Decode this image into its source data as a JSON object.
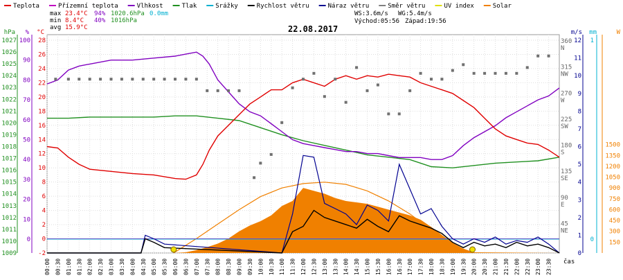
{
  "chart_data": {
    "type": "line",
    "title": "22.08.2017",
    "xlabel": "čas",
    "legend": [
      {
        "name": "Teplota",
        "color": "#e00000"
      },
      {
        "name": "Přízemní teplota",
        "color": "#c000c0"
      },
      {
        "name": "Vlhkost",
        "color": "#8000c0"
      },
      {
        "name": "Tlak",
        "color": "#209020"
      },
      {
        "name": "Srážky",
        "color": "#00b0d0"
      },
      {
        "name": "Rychlost větru",
        "color": "#000000"
      },
      {
        "name": "Náraz větru",
        "color": "#000090"
      },
      {
        "name": "Směr větru",
        "color": "#808080"
      },
      {
        "name": "UV index",
        "color": "#e0e000"
      },
      {
        "name": "Solar",
        "color": "#f08000"
      }
    ],
    "stats": {
      "max_label": "max",
      "max_temp": "23.4°C",
      "max_hum": "94%",
      "max_press": "1020.6hPa",
      "max_rain": "0.0mm",
      "min_label": "min",
      "min_temp": "8.4°C",
      "min_hum": "40%",
      "min_press": "1016hPa",
      "avg_label": "avg",
      "avg_temp": "15.9°C"
    },
    "wind_info": {
      "ws": "WS:3.6m/s",
      "wg": "WG:5.4m/s",
      "sunrise": "Východ:05:56",
      "sunset": "Západ:19:56"
    },
    "axes": {
      "hpa": {
        "unit": "hPa",
        "ticks": [
          1027,
          1026,
          1025,
          1024,
          1023,
          1022,
          1021,
          1020,
          1019,
          1018,
          1017,
          1016,
          1015,
          1014,
          1013,
          1012,
          1011,
          1010,
          1009
        ],
        "range": [
          1009,
          1027
        ]
      },
      "hum": {
        "unit": "%",
        "ticks": [
          100,
          90,
          80,
          70,
          60,
          50,
          40,
          30,
          20,
          10,
          0
        ],
        "range": [
          0,
          100
        ]
      },
      "temp": {
        "unit": "°C",
        "ticks": [
          28,
          26,
          24,
          22,
          20,
          18,
          16,
          14,
          12,
          10,
          8,
          6,
          4,
          2,
          0,
          -2
        ],
        "range": [
          -2,
          28
        ]
      },
      "dir": {
        "ticks": [
          {
            "v": "360",
            "l": "N"
          },
          {
            "v": "315",
            "l": "NW"
          },
          {
            "v": "270",
            "l": "W"
          },
          {
            "v": "225",
            "l": "SW"
          },
          {
            "v": "180",
            "l": "S"
          },
          {
            "v": "135",
            "l": "SE"
          },
          {
            "v": "90",
            "l": "E"
          },
          {
            "v": "45",
            "l": "NE"
          }
        ],
        "range": [
          0,
          360
        ]
      },
      "ms": {
        "unit": "m/s",
        "ticks": [
          12,
          11,
          10,
          9,
          8,
          7,
          6,
          5,
          4,
          3,
          2,
          1,
          0
        ],
        "range": [
          0,
          12
        ]
      },
      "mm": {
        "unit": "mm",
        "ticks": [
          1,
          0
        ],
        "range": [
          0,
          1
        ]
      },
      "w": {
        "unit": "W",
        "ticks": [
          1500,
          1350,
          1200,
          1050,
          900,
          750,
          600,
          450,
          300,
          150
        ],
        "range": [
          0,
          1650
        ]
      },
      "x_ticks": [
        "00:00",
        "00:30",
        "01:00",
        "01:30",
        "02:00",
        "02:30",
        "03:00",
        "03:30",
        "04:00",
        "04:30",
        "05:00",
        "05:30",
        "06:00",
        "06:30",
        "07:00",
        "07:30",
        "08:00",
        "08:30",
        "09:00",
        "09:30",
        "10:00",
        "10:30",
        "11:00",
        "11:30",
        "12:00",
        "12:30",
        "13:00",
        "13:30",
        "14:00",
        "14:30",
        "15:00",
        "15:30",
        "16:00",
        "16:30",
        "17:00",
        "17:30",
        "18:00",
        "18:30",
        "19:00",
        "19:30",
        "20:00",
        "20:30",
        "21:00",
        "21:30",
        "22:00",
        "22:30",
        "23:00",
        "23:30"
      ]
    },
    "series": {
      "temperature": {
        "unit": "°C",
        "x": [
          0,
          0.5,
          1,
          1.5,
          2,
          3,
          4,
          5,
          6,
          6.5,
          7,
          7.3,
          7.6,
          8,
          8.5,
          9,
          9.5,
          10,
          10.5,
          11,
          11.5,
          12,
          12.5,
          13,
          13.5,
          14,
          14.5,
          15,
          15.5,
          16,
          16.5,
          17,
          17.5,
          18,
          18.5,
          19,
          19.5,
          20,
          20.5,
          21,
          21.5,
          22,
          22.5,
          23,
          23.5,
          24
        ],
        "y": [
          13,
          12.8,
          11.5,
          10.5,
          9.8,
          9.5,
          9.2,
          9,
          8.5,
          8.4,
          9,
          10.5,
          12.5,
          14.5,
          16,
          17.5,
          19,
          20,
          21,
          21,
          22,
          22.5,
          22,
          21.5,
          22.5,
          23,
          22.5,
          23,
          22.8,
          23.2,
          23,
          22.8,
          22,
          21.5,
          21,
          20.5,
          19.5,
          18.5,
          17,
          15.5,
          14.5,
          14,
          13.5,
          13.3,
          12.5,
          11.5
        ]
      },
      "humidity": {
        "unit": "%",
        "x": [
          0,
          0.5,
          1,
          1.5,
          2,
          3,
          4,
          5,
          6,
          6.5,
          7,
          7.3,
          7.6,
          8,
          8.5,
          9,
          9.5,
          10,
          10.5,
          11,
          11.5,
          12,
          12.5,
          13,
          13.5,
          14,
          14.5,
          15,
          15.5,
          16,
          16.5,
          17,
          17.5,
          18,
          18.5,
          19,
          19.5,
          20,
          20.5,
          21,
          21.5,
          22,
          22.5,
          23,
          23.5,
          24
        ],
        "y": [
          78,
          80,
          85,
          87,
          88,
          90,
          90,
          91,
          92,
          93,
          94,
          92,
          88,
          80,
          74,
          68,
          64,
          62,
          58,
          54,
          50,
          48,
          47,
          46,
          45,
          44,
          44,
          43,
          43,
          42,
          41,
          41,
          41,
          40,
          40,
          42,
          47,
          51,
          54,
          57,
          61,
          64,
          67,
          70,
          72,
          76
        ]
      },
      "pressure": {
        "unit": "hPa",
        "x": [
          0,
          1,
          2,
          3,
          4,
          5,
          6,
          7,
          8,
          9,
          10,
          11,
          12,
          13,
          14,
          15,
          16,
          17,
          18,
          19,
          20,
          21,
          22,
          23,
          24
        ],
        "y": [
          1020.4,
          1020.4,
          1020.5,
          1020.5,
          1020.5,
          1020.5,
          1020.6,
          1020.6,
          1020.4,
          1020.2,
          1019.6,
          1019.0,
          1018.5,
          1018.1,
          1017.7,
          1017.3,
          1017.1,
          1016.9,
          1016.3,
          1016.2,
          1016.4,
          1016.6,
          1016.7,
          1016.8,
          1017.1
        ]
      },
      "ground_temperature": {
        "unit": "°C",
        "x": [
          0,
          24
        ],
        "y": [
          0,
          0
        ]
      },
      "precipitation": {
        "unit": "mm",
        "x": [
          0,
          24
        ],
        "y": [
          0,
          0
        ]
      },
      "wind_speed": {
        "unit": "m/s",
        "x": [
          0,
          4.4,
          4.6,
          5,
          5.5,
          11,
          11.5,
          12,
          12.5,
          13,
          13.5,
          14,
          14.5,
          15,
          15.5,
          16,
          16.5,
          17,
          17.5,
          18,
          18.5,
          19,
          19.5,
          20,
          20.5,
          21,
          21.5,
          22,
          22.5,
          23,
          23.5,
          24
        ],
        "y": [
          0,
          0,
          0.8,
          0.6,
          0.3,
          0,
          1.2,
          1.5,
          2.4,
          2,
          1.8,
          1.6,
          1.4,
          1.9,
          1.5,
          1.2,
          2.1,
          1.8,
          1.6,
          1.4,
          1.1,
          0.6,
          0.3,
          0.6,
          0.4,
          0.5,
          0.3,
          0.6,
          0.4,
          0.5,
          0.3,
          0
        ]
      },
      "wind_gust": {
        "unit": "m/s",
        "x": [
          0,
          4.4,
          4.6,
          5,
          5.5,
          11,
          11.5,
          12,
          12.5,
          13,
          13.5,
          14,
          14.5,
          15,
          15.5,
          16,
          16.5,
          17,
          17.5,
          18,
          18.5,
          19,
          19.5,
          20,
          20.5,
          21,
          21.5,
          22,
          22.5,
          23,
          23.5,
          24
        ],
        "y": [
          0,
          0,
          1.0,
          0.8,
          0.5,
          0,
          2.2,
          5.5,
          5.4,
          2.8,
          2.5,
          2.2,
          1.6,
          2.7,
          2.4,
          1.8,
          5.0,
          3.6,
          2.2,
          2.5,
          1.5,
          0.8,
          0.5,
          0.8,
          0.6,
          0.9,
          0.5,
          0.7,
          0.6,
          0.9,
          0.5,
          0
        ]
      },
      "wind_direction": {
        "unit": "deg",
        "x": [
          0.4,
          1,
          1.5,
          2,
          2.5,
          3,
          3.5,
          4,
          4.5,
          5,
          5.5,
          6,
          6.5,
          7,
          7.5,
          8,
          8.5,
          9,
          9.7,
          10,
          10.5,
          11,
          11.5,
          12,
          12.5,
          13,
          13.5,
          14,
          14.5,
          15,
          15.5,
          16,
          16.5,
          17,
          17.5,
          18,
          18.5,
          19,
          19.5,
          20,
          20.5,
          21,
          21.5,
          22,
          22.5,
          23,
          23.5
        ],
        "y": [
          300,
          300,
          300,
          300,
          300,
          300,
          300,
          300,
          300,
          300,
          300,
          300,
          300,
          300,
          280,
          280,
          280,
          280,
          130,
          155,
          170,
          225,
          285,
          300,
          310,
          270,
          300,
          260,
          320,
          280,
          290,
          240,
          240,
          280,
          310,
          300,
          300,
          315,
          325,
          310,
          310,
          310,
          310,
          310,
          320,
          340,
          340
        ]
      },
      "solar": {
        "unit": "W/m2",
        "x": [
          0,
          6,
          6.5,
          7,
          7.5,
          8,
          8.5,
          9,
          9.5,
          10,
          10.5,
          11,
          11.5,
          12,
          12.5,
          13,
          13.5,
          14,
          14.5,
          15,
          15.5,
          16,
          16.5,
          17,
          17.5,
          18,
          18.5,
          19,
          19.5,
          20,
          24
        ],
        "y": [
          0,
          0,
          10,
          40,
          80,
          130,
          200,
          300,
          380,
          440,
          520,
          650,
          720,
          900,
          860,
          820,
          760,
          720,
          700,
          680,
          640,
          600,
          560,
          520,
          460,
          360,
          250,
          140,
          60,
          10,
          0
        ]
      },
      "solar_max_theoretical": {
        "unit": "W/m2",
        "x": [
          5.93,
          7,
          8,
          9,
          10,
          11,
          12,
          13,
          14,
          15,
          16,
          17,
          18,
          19,
          19.93
        ],
        "y": [
          0,
          200,
          400,
          600,
          780,
          900,
          960,
          980,
          950,
          860,
          720,
          540,
          320,
          120,
          0
        ]
      }
    }
  }
}
